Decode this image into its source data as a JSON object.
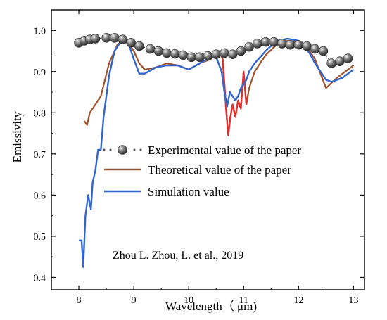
{
  "chart_data": {
    "type": "line",
    "xlabel": "Wavelength（ μm)",
    "ylabel": "Emissivity",
    "xlim": [
      7.5,
      13.2
    ],
    "ylim": [
      0.37,
      1.05
    ],
    "x_ticks": [
      8,
      9,
      10,
      11,
      12,
      13
    ],
    "y_ticks": [
      0.4,
      0.5,
      0.6,
      0.7,
      0.8,
      0.9,
      1.0
    ],
    "x_tick_labels": [
      "8",
      "9",
      "10",
      "11",
      "12",
      "13"
    ],
    "y_tick_labels": [
      "0.4",
      "0.5",
      "0.6",
      "0.7",
      "0.8",
      "0.9",
      "1.0"
    ],
    "grid": false,
    "legend_position": "center-right",
    "annotation": "Zhou L. Zhou, L. et al., 2019",
    "colors": {
      "experimental": "#808080",
      "theoretical": "#a0522d",
      "simulation": "#3366cc",
      "theoretical_highlight": "#e03030"
    },
    "series": [
      {
        "name": "Experimental value of the paper",
        "style": "dotted-sphere-markers",
        "x": [
          8.0,
          8.1,
          8.2,
          8.3,
          8.5,
          8.65,
          8.8,
          8.95,
          9.1,
          9.3,
          9.45,
          9.6,
          9.75,
          9.9,
          10.05,
          10.2,
          10.35,
          10.5,
          10.65,
          10.8,
          10.95,
          11.1,
          11.25,
          11.4,
          11.55,
          11.7,
          11.85,
          12.0,
          12.15,
          12.3,
          12.45,
          12.6,
          12.75,
          12.9
        ],
        "y": [
          0.97,
          0.975,
          0.978,
          0.98,
          0.982,
          0.982,
          0.978,
          0.97,
          0.962,
          0.955,
          0.95,
          0.945,
          0.943,
          0.94,
          0.935,
          0.935,
          0.938,
          0.942,
          0.945,
          0.942,
          0.95,
          0.96,
          0.968,
          0.972,
          0.972,
          0.968,
          0.965,
          0.965,
          0.962,
          0.955,
          0.95,
          0.92,
          0.925,
          0.932
        ]
      },
      {
        "name": "Theoretical value of the paper",
        "x": [
          8.1,
          8.15,
          8.2,
          8.3,
          8.4,
          8.55,
          8.7,
          8.8,
          8.9,
          9.0,
          9.1,
          9.2,
          9.4,
          9.6,
          9.8,
          10.0,
          10.2,
          10.4,
          10.55,
          10.62,
          10.68,
          10.72,
          10.76,
          10.8,
          10.85,
          10.9,
          10.95,
          11.0,
          11.05,
          11.1,
          11.2,
          11.4,
          11.6,
          11.8,
          12.0,
          12.2,
          12.3,
          12.4,
          12.5,
          12.7,
          13.0
        ],
        "y": [
          0.78,
          0.77,
          0.8,
          0.82,
          0.84,
          0.92,
          0.965,
          0.975,
          0.97,
          0.95,
          0.92,
          0.905,
          0.91,
          0.92,
          0.915,
          0.905,
          0.92,
          0.93,
          0.95,
          0.93,
          0.81,
          0.745,
          0.79,
          0.82,
          0.79,
          0.83,
          0.81,
          0.9,
          0.82,
          0.86,
          0.9,
          0.94,
          0.965,
          0.975,
          0.97,
          0.95,
          0.93,
          0.895,
          0.86,
          0.885,
          0.915
        ]
      },
      {
        "name": "Simulation value",
        "x": [
          8.0,
          8.05,
          8.08,
          8.12,
          8.17,
          8.22,
          8.25,
          8.3,
          8.35,
          8.4,
          8.45,
          8.55,
          8.65,
          8.8,
          8.9,
          9.0,
          9.1,
          9.2,
          9.4,
          9.6,
          9.8,
          10.0,
          10.2,
          10.4,
          10.5,
          10.6,
          10.65,
          10.7,
          10.75,
          10.8,
          10.85,
          10.9,
          10.95,
          11.0,
          11.05,
          11.1,
          11.2,
          11.4,
          11.6,
          11.8,
          12.0,
          12.1,
          12.2,
          12.3,
          12.4,
          12.5,
          12.6,
          12.8,
          13.0
        ],
        "y": [
          0.49,
          0.49,
          0.425,
          0.55,
          0.6,
          0.565,
          0.63,
          0.66,
          0.71,
          0.71,
          0.79,
          0.89,
          0.95,
          0.98,
          0.97,
          0.93,
          0.895,
          0.895,
          0.91,
          0.915,
          0.915,
          0.905,
          0.92,
          0.935,
          0.935,
          0.9,
          0.85,
          0.815,
          0.85,
          0.84,
          0.83,
          0.84,
          0.86,
          0.87,
          0.88,
          0.9,
          0.92,
          0.95,
          0.975,
          0.98,
          0.975,
          0.96,
          0.945,
          0.92,
          0.9,
          0.88,
          0.875,
          0.885,
          0.905
        ]
      }
    ]
  }
}
